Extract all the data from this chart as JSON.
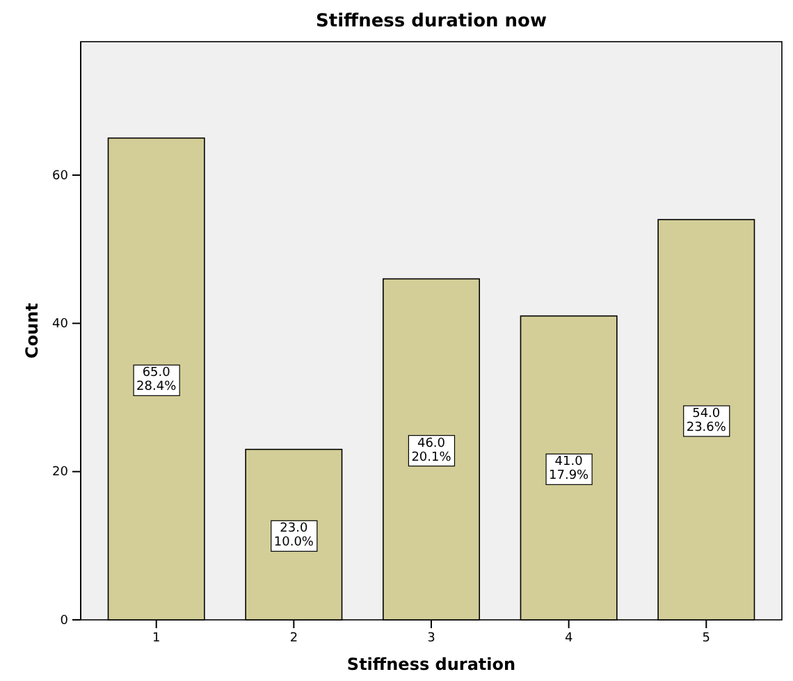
{
  "chart_data": {
    "type": "bar",
    "title": "Stiffness duration now",
    "xlabel": "Stiffness duration",
    "ylabel": "Count",
    "categories": [
      "1",
      "2",
      "3",
      "4",
      "5"
    ],
    "values": [
      65,
      23,
      46,
      41,
      54
    ],
    "value_labels": [
      "65.0\n28.4%",
      "23.0\n10.0%",
      "46.0\n20.1%",
      "41.0\n17.9%",
      "54.0\n23.6%"
    ],
    "color": "#d3ce97",
    "ylim": [
      0,
      78
    ],
    "yticks": [
      0,
      20,
      40,
      60
    ]
  }
}
